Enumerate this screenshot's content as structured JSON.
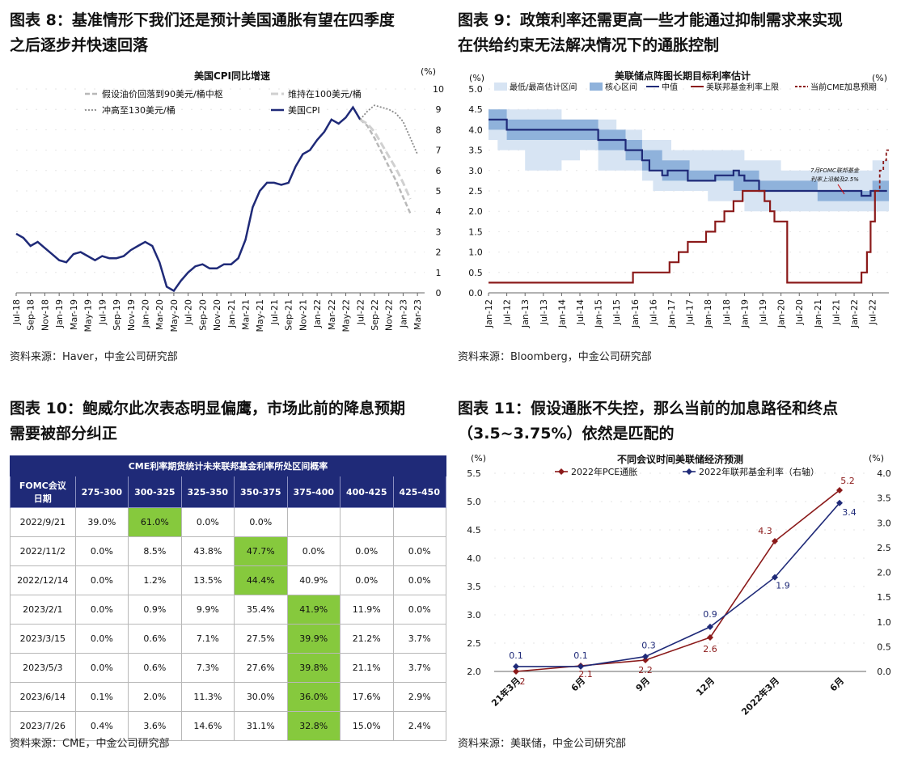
{
  "panels": {
    "fig8": {
      "title_line1": "图表 8：基准情形下我们还是预计美国通胀有望在四季度",
      "title_line2": "之后逐步并快速回落",
      "source": "资料来源：Haver，中金公司研究部"
    },
    "fig9": {
      "title_line1": "图表 9：政策利率还需更高一些才能通过抑制需求来实现",
      "title_line2": "在供给约束无法解决情况下的通胀控制",
      "source": "资料来源：Bloomberg，中金公司研究部"
    },
    "fig10": {
      "title_line1": "图表 10：鲍威尔此次表态明显偏鹰，市场此前的降息预期",
      "title_line2": "需要被部分纠正",
      "source": "资料来源：CME，中金公司研究部"
    },
    "fig11": {
      "title_line1": "图表 11：假设通胀不失控，那么当前的加息路径和终点",
      "title_line2": "（3.5~3.75%）依然是匹配的",
      "source": "资料来源：美联储，中金公司研究部"
    }
  },
  "chart_data": [
    {
      "type": "line",
      "title": "美国CPI同比增速",
      "unit": "(%)",
      "ylim": [
        0,
        10
      ],
      "yticks": [
        "0",
        "1",
        "2",
        "3",
        "4",
        "5",
        "6",
        "7",
        "8",
        "9",
        "10"
      ],
      "x_tick_labels": [
        "Jul-18",
        "Sep-18",
        "Nov-18",
        "Jan-19",
        "Mar-19",
        "May-19",
        "Jul-19",
        "Sep-19",
        "Nov-19",
        "Jan-20",
        "Mar-20",
        "May-20",
        "Jul-20",
        "Sep-20",
        "Nov-20",
        "Jan-21",
        "Mar-21",
        "May-21",
        "Jul-21",
        "Sep-21",
        "Nov-21",
        "Jan-22",
        "Mar-22",
        "May-22",
        "Jul-22",
        "Sep-22",
        "Nov-22",
        "Jan-23",
        "Mar-23"
      ],
      "x_start": "2018-07",
      "legend": [
        "假设油价回落到90美元/桶中枢",
        "维持在100美元/桶",
        "冲高至130美元/桶",
        "美国CPI"
      ],
      "colors": {
        "cpi": "#1f2a78",
        "oil90": "#b8b8b8",
        "oil100": "#d0d0d0",
        "oil130": "#8a8a8a"
      },
      "series": [
        {
          "name": "美国CPI",
          "values": [
            2.9,
            2.7,
            2.3,
            2.5,
            2.2,
            1.9,
            1.6,
            1.5,
            1.9,
            2.0,
            1.8,
            1.6,
            1.8,
            1.7,
            1.7,
            1.8,
            2.1,
            2.3,
            2.5,
            2.3,
            1.5,
            0.3,
            0.1,
            0.6,
            1.0,
            1.3,
            1.4,
            1.2,
            1.2,
            1.4,
            1.4,
            1.7,
            2.6,
            4.2,
            5.0,
            5.4,
            5.4,
            5.3,
            5.4,
            6.2,
            6.8,
            7.0,
            7.5,
            7.9,
            8.5,
            8.3,
            8.6,
            9.1,
            8.5
          ]
        },
        {
          "name": "假设油价回落到90美元/桶中枢",
          "values": [
            8.5,
            8.2,
            7.6,
            6.9,
            6.2,
            5.5,
            4.7,
            3.9
          ]
        },
        {
          "name": "维持在100美元/桶",
          "values": [
            8.5,
            8.3,
            7.9,
            7.3,
            6.7,
            6.1,
            5.4,
            4.6
          ]
        },
        {
          "name": "冲高至130美元/桶",
          "values": [
            8.5,
            8.9,
            9.2,
            9.1,
            9.0,
            8.8,
            8.4,
            7.6,
            6.8
          ]
        }
      ]
    },
    {
      "type": "line",
      "title": "美联储点阵图长期目标利率估计",
      "unit": "(%)",
      "ylim": [
        0,
        5
      ],
      "yticks": [
        "0.0",
        "0.5",
        "1.0",
        "1.5",
        "2.0",
        "2.5",
        "3.0",
        "3.5",
        "4.0",
        "4.5",
        "5.0"
      ],
      "x_tick_labels": [
        "Jan-12",
        "Jul-12",
        "Jan-13",
        "Jul-13",
        "Jan-14",
        "Jul-14",
        "Jan-15",
        "Jul-15",
        "Jan-16",
        "Jul-16",
        "Jan-17",
        "Jul-17",
        "Jan-18",
        "Jul-18",
        "Jan-19",
        "Jul-19",
        "Jan-20",
        "Jul-20",
        "Jan-21",
        "Jul-21",
        "Jan-22",
        "Jul-22"
      ],
      "legend": [
        "最低/最高估计区间",
        "核心区间",
        "中值",
        "美联邦基金利率上限",
        "当前CME加息预期"
      ],
      "colors": {
        "range": "#d7e4f3",
        "core": "#8fb2db",
        "median": "#1f2a78",
        "ffr": "#8b1a1a"
      },
      "annotation": "7月FOMC联邦基金利率上沿触及2.5%",
      "median": [
        [
          2012.0,
          4.25
        ],
        [
          2012.25,
          4.25
        ],
        [
          2012.5,
          4.0
        ],
        [
          2014.5,
          4.0
        ],
        [
          2015.0,
          3.75
        ],
        [
          2015.75,
          3.5
        ],
        [
          2016.2,
          3.25
        ],
        [
          2016.4,
          3.0
        ],
        [
          2016.75,
          2.88
        ],
        [
          2016.9,
          3.0
        ],
        [
          2017.45,
          2.75
        ],
        [
          2017.75,
          2.75
        ],
        [
          2018.2,
          2.88
        ],
        [
          2018.7,
          3.0
        ],
        [
          2018.85,
          2.88
        ],
        [
          2019.0,
          2.75
        ],
        [
          2019.4,
          2.5
        ],
        [
          2022.1,
          2.5
        ],
        [
          2022.2,
          2.38
        ],
        [
          2022.45,
          2.5
        ],
        [
          2022.9,
          2.5
        ]
      ],
      "core_band": [
        [
          2012.0,
          4.0,
          4.5
        ],
        [
          2012.5,
          3.75,
          4.25
        ],
        [
          2013.5,
          3.75,
          4.25
        ],
        [
          2014.5,
          3.75,
          4.25
        ],
        [
          2015.0,
          3.5,
          4.0
        ],
        [
          2015.75,
          3.25,
          3.75
        ],
        [
          2016.2,
          3.0,
          3.5
        ],
        [
          2016.75,
          2.75,
          3.25
        ],
        [
          2017.5,
          2.75,
          3.0
        ],
        [
          2018.2,
          2.75,
          3.0
        ],
        [
          2018.7,
          2.5,
          3.0
        ],
        [
          2019.0,
          2.5,
          3.0
        ],
        [
          2019.4,
          2.5,
          2.75
        ],
        [
          2021.0,
          2.25,
          2.5
        ],
        [
          2022.1,
          2.25,
          2.5
        ],
        [
          2022.5,
          2.25,
          2.75
        ],
        [
          2022.9,
          2.25,
          2.75
        ]
      ],
      "range_band": [
        [
          2012.0,
          3.75,
          4.5
        ],
        [
          2012.25,
          3.5,
          4.5
        ],
        [
          2013.0,
          3.0,
          4.5
        ],
        [
          2013.5,
          3.0,
          4.5
        ],
        [
          2014.0,
          3.25,
          4.25
        ],
        [
          2014.5,
          3.5,
          4.25
        ],
        [
          2015.0,
          3.0,
          4.25
        ],
        [
          2015.5,
          3.0,
          4.0
        ],
        [
          2016.2,
          2.75,
          3.75
        ],
        [
          2016.5,
          2.5,
          3.75
        ],
        [
          2017.0,
          2.5,
          3.5
        ],
        [
          2017.5,
          2.5,
          3.5
        ],
        [
          2018.0,
          2.25,
          3.5
        ],
        [
          2018.5,
          2.25,
          3.5
        ],
        [
          2019.0,
          2.0,
          3.25
        ],
        [
          2019.5,
          2.0,
          3.25
        ],
        [
          2020.0,
          2.0,
          3.0
        ],
        [
          2021.0,
          2.0,
          3.0
        ],
        [
          2022.0,
          2.0,
          3.0
        ],
        [
          2022.5,
          2.0,
          3.25
        ],
        [
          2022.9,
          2.0,
          3.25
        ]
      ],
      "ffr_upper": [
        [
          2012.0,
          0.25
        ],
        [
          2015.95,
          0.25
        ],
        [
          2015.95,
          0.5
        ],
        [
          2016.95,
          0.5
        ],
        [
          2016.95,
          0.75
        ],
        [
          2017.2,
          0.75
        ],
        [
          2017.2,
          1.0
        ],
        [
          2017.45,
          1.0
        ],
        [
          2017.45,
          1.25
        ],
        [
          2017.95,
          1.25
        ],
        [
          2017.95,
          1.5
        ],
        [
          2018.2,
          1.5
        ],
        [
          2018.2,
          1.75
        ],
        [
          2018.45,
          1.75
        ],
        [
          2018.45,
          2.0
        ],
        [
          2018.7,
          2.0
        ],
        [
          2018.7,
          2.25
        ],
        [
          2018.95,
          2.25
        ],
        [
          2018.95,
          2.5
        ],
        [
          2019.55,
          2.5
        ],
        [
          2019.55,
          2.25
        ],
        [
          2019.7,
          2.25
        ],
        [
          2019.7,
          2.0
        ],
        [
          2019.82,
          2.0
        ],
        [
          2019.82,
          1.75
        ],
        [
          2020.17,
          1.75
        ],
        [
          2020.17,
          0.25
        ],
        [
          2022.2,
          0.25
        ],
        [
          2022.2,
          0.5
        ],
        [
          2022.35,
          0.5
        ],
        [
          2022.35,
          1.0
        ],
        [
          2022.45,
          1.0
        ],
        [
          2022.45,
          1.75
        ],
        [
          2022.57,
          1.75
        ],
        [
          2022.57,
          2.5
        ],
        [
          2022.6,
          2.5
        ]
      ],
      "cme": [
        [
          2022.6,
          2.5
        ],
        [
          2022.7,
          2.5
        ],
        [
          2022.7,
          3.0
        ],
        [
          2022.8,
          3.0
        ],
        [
          2022.8,
          3.25
        ],
        [
          2022.88,
          3.25
        ],
        [
          2022.88,
          3.5
        ],
        [
          2022.95,
          3.5
        ]
      ]
    },
    {
      "type": "table",
      "title": "CME利率期货统计未来联邦基金利率所处区间概率",
      "header": [
        "FOMC会议\n日期",
        "275-300",
        "300-325",
        "325-350",
        "350-375",
        "375-400",
        "400-425",
        "425-450"
      ],
      "rows": [
        {
          "date": "2022/9/21",
          "cells": [
            "39.0%",
            "61.0%",
            "0.0%",
            "0.0%",
            "",
            "",
            ""
          ],
          "hl": 1
        },
        {
          "date": "2022/11/2",
          "cells": [
            "0.0%",
            "8.5%",
            "43.8%",
            "47.7%",
            "0.0%",
            "0.0%",
            "0.0%"
          ],
          "hl": 3
        },
        {
          "date": "2022/12/14",
          "cells": [
            "0.0%",
            "1.2%",
            "13.5%",
            "44.4%",
            "40.9%",
            "0.0%",
            "0.0%"
          ],
          "hl": 3
        },
        {
          "date": "2023/2/1",
          "cells": [
            "0.0%",
            "0.9%",
            "9.9%",
            "35.4%",
            "41.9%",
            "11.9%",
            "0.0%"
          ],
          "hl": 4
        },
        {
          "date": "2023/3/15",
          "cells": [
            "0.0%",
            "0.6%",
            "7.1%",
            "27.5%",
            "39.9%",
            "21.2%",
            "3.7%"
          ],
          "hl": 4
        },
        {
          "date": "2023/5/3",
          "cells": [
            "0.0%",
            "0.6%",
            "7.3%",
            "27.6%",
            "39.8%",
            "21.1%",
            "3.7%"
          ],
          "hl": 4
        },
        {
          "date": "2023/6/14",
          "cells": [
            "0.1%",
            "2.0%",
            "11.3%",
            "30.0%",
            "36.0%",
            "17.6%",
            "2.9%"
          ],
          "hl": 4
        },
        {
          "date": "2023/7/26",
          "cells": [
            "0.4%",
            "3.6%",
            "14.6%",
            "31.1%",
            "32.8%",
            "15.0%",
            "2.4%"
          ],
          "hl": 4
        }
      ]
    },
    {
      "type": "line",
      "title": "不同会议时间美联储经济预测",
      "unit_left": "(%)",
      "unit_right": "(%)",
      "ylim_left": [
        2.0,
        5.5
      ],
      "ylim_right": [
        0.0,
        4.0
      ],
      "yticks_left": [
        "2.0",
        "2.5",
        "3.0",
        "3.5",
        "4.0",
        "4.5",
        "5.0",
        "5.5"
      ],
      "yticks_right": [
        "0.0",
        "0.5",
        "1.0",
        "1.5",
        "2.0",
        "2.5",
        "3.0",
        "3.5",
        "4.0"
      ],
      "categories": [
        "21年3月",
        "6月",
        "9月",
        "12月",
        "2022年3月",
        "6月"
      ],
      "colors": {
        "pce": "#8b1a1a",
        "ffr": "#1f2a78"
      },
      "series": [
        {
          "name": "2022年PCE通胀",
          "axis": "left",
          "values": [
            2.0,
            2.1,
            2.2,
            2.6,
            4.3,
            5.2
          ],
          "labels": [
            "2",
            "2.1",
            "2.2",
            "2.6",
            "4.3",
            "5.2"
          ]
        },
        {
          "name": "2022年联邦基金利率（右轴）",
          "axis": "right",
          "values": [
            0.1,
            0.1,
            0.3,
            0.9,
            1.9,
            3.4
          ],
          "labels": [
            "0.1",
            "0.1",
            "0.3",
            "0.9",
            "1.9",
            "3.4"
          ]
        }
      ]
    }
  ]
}
